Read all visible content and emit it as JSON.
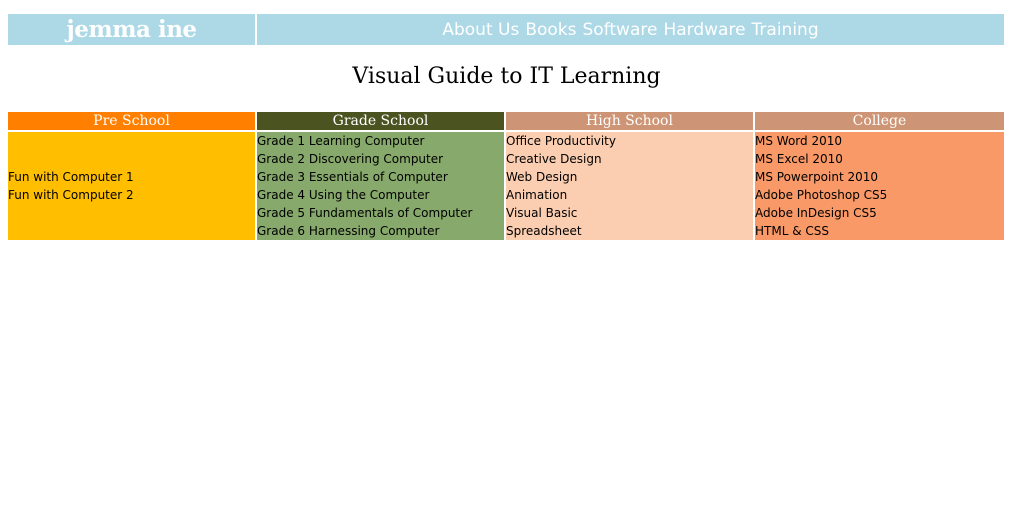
{
  "header": {
    "logo": "jemma ine",
    "nav": [
      "About Us",
      "Books",
      "Software",
      "Hardware",
      "Training"
    ]
  },
  "page_title": "Visual Guide to IT Learning",
  "columns": [
    {
      "heading": "Pre School",
      "items": [
        "Fun with Computer 1",
        "Fun with Computer 2"
      ],
      "colors": {
        "head": "#ff7f00",
        "body": "#ffbf00"
      }
    },
    {
      "heading": "Grade School",
      "items": [
        "Grade 1 Learning Computer",
        "Grade 2 Discovering Computer",
        "Grade 3 Essentials of Computer",
        "Grade 4 Using the Computer",
        "Grade 5 Fundamentals of Computer",
        "Grade 6 Harnessing Computer"
      ],
      "colors": {
        "head": "#4b5320",
        "body": "#87a96b"
      }
    },
    {
      "heading": "High School",
      "items": [
        "Office Productivity",
        "Creative Design",
        "Web Design",
        "Animation",
        "Visual Basic",
        "Spreadsheet"
      ],
      "colors": {
        "head": "#cd9575",
        "body": "#fbceb1"
      }
    },
    {
      "heading": "College",
      "items": [
        "MS Word 2010",
        "MS Excel 2010",
        "MS Powerpoint 2010",
        "Adobe Photoshop CS5",
        "Adobe InDesign CS5",
        "HTML & CSS"
      ],
      "colors": {
        "head": "#cd9575",
        "body": "#f89967"
      }
    }
  ]
}
